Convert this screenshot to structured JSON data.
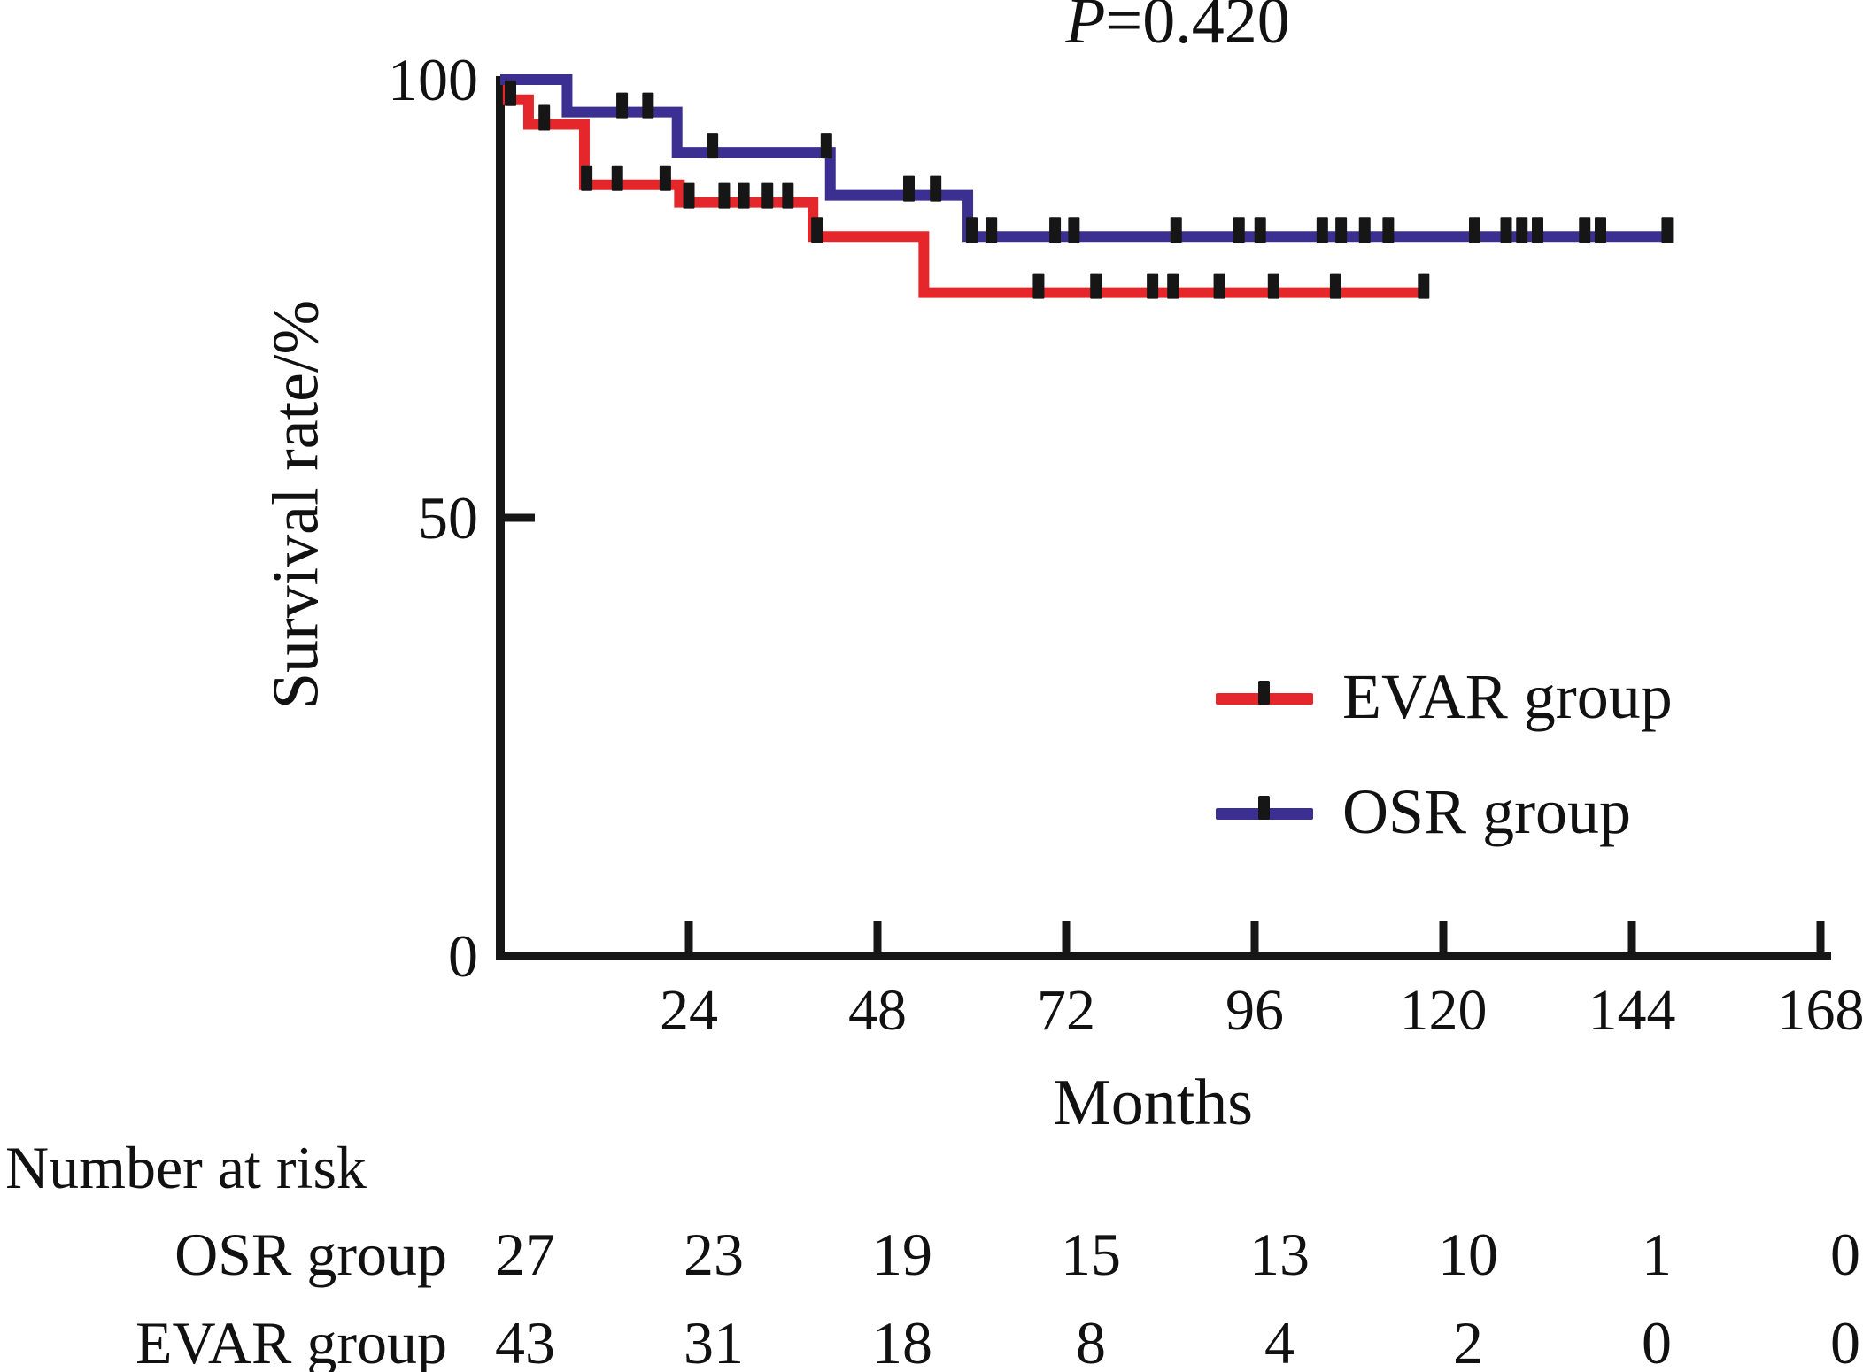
{
  "title": {
    "p_italic": "P",
    "p_rest": "=0.420"
  },
  "y_axis": {
    "label": "Survival rate/%",
    "ticks": [
      100,
      50,
      0
    ],
    "min": 0,
    "max": 100
  },
  "x_axis": {
    "label": "Months",
    "ticks": [
      24,
      48,
      72,
      96,
      120,
      144,
      168
    ],
    "min": 0,
    "max": 168
  },
  "legend": [
    {
      "name": "EVAR group",
      "color": "#e5272c"
    },
    {
      "name": "OSR group",
      "color": "#3b3092"
    }
  ],
  "risk_table": {
    "title": "Number at risk",
    "columns_months": [
      0,
      24,
      48,
      72,
      96,
      120,
      144,
      168
    ],
    "rows": [
      {
        "label": "OSR group",
        "values": [
          27,
          23,
          19,
          15,
          13,
          10,
          1,
          0
        ]
      },
      {
        "label": "EVAR group",
        "values": [
          43,
          31,
          18,
          8,
          4,
          2,
          0,
          0
        ]
      }
    ]
  },
  "chart_data": {
    "type": "line",
    "subtype": "kaplan-meier-step",
    "title": "P=0.420",
    "p_value": "0.420",
    "xlabel": "Months",
    "ylabel": "Survival rate/%",
    "xlim": [
      0,
      168
    ],
    "ylim": [
      0,
      100
    ],
    "x_ticks": [
      24,
      48,
      72,
      96,
      120,
      144,
      168
    ],
    "y_ticks": [
      0,
      50,
      100
    ],
    "grid": false,
    "legend_position": "right-middle",
    "axis_color": "#161616",
    "censor_color": "#161616",
    "series": [
      {
        "name": "EVAR group",
        "color": "#e5272c",
        "steps": [
          [
            0,
            100
          ],
          [
            1,
            97.7
          ],
          [
            3.6,
            94.9
          ],
          [
            10.7,
            88.0
          ],
          [
            22.8,
            86.0
          ],
          [
            39.8,
            82.1
          ],
          [
            53.9,
            75.7
          ]
        ],
        "end_x": 118,
        "censors_x": [
          1.3,
          5.6,
          11.0,
          14.9,
          21.0,
          24.0,
          28.5,
          31.0,
          34.0,
          36.6,
          40.3,
          68.5,
          75.8,
          83.0,
          85.6,
          91.5,
          98.4,
          106.3,
          117.5
        ]
      },
      {
        "name": "OSR group",
        "color": "#3b3092",
        "steps": [
          [
            0,
            100
          ],
          [
            8.5,
            96.3
          ],
          [
            22.5,
            91.7
          ],
          [
            42.0,
            86.8
          ],
          [
            59.5,
            82.1
          ]
        ],
        "end_x": 149,
        "censors_x": [
          15.5,
          18.8,
          27.0,
          41.5,
          52.0,
          55.4,
          60.0,
          62.5,
          70.6,
          73.0,
          86.0,
          94.0,
          96.7,
          104.6,
          107.0,
          110.0,
          113.0,
          124.0,
          128.0,
          130.0,
          132.0,
          138.0,
          140.0,
          148.5
        ]
      }
    ]
  }
}
